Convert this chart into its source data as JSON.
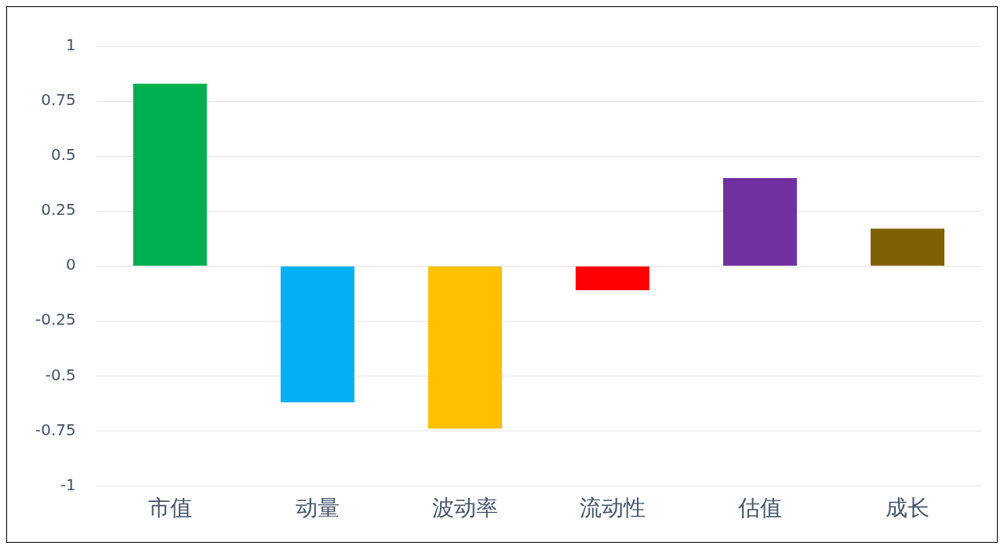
{
  "chart_data": {
    "type": "bar",
    "categories": [
      "市值",
      "动量",
      "波动率",
      "流动性",
      "估值",
      "成长"
    ],
    "values": [
      0.83,
      -0.62,
      -0.74,
      -0.11,
      0.4,
      0.17
    ],
    "colors": [
      "#00b050",
      "#00b0f0",
      "#ffc000",
      "#ff0000",
      "#7030a0",
      "#7f6000"
    ],
    "ylim": [
      -1,
      1
    ],
    "yticks": [
      -1,
      -0.75,
      -0.5,
      -0.25,
      0,
      0.25,
      0.5,
      0.75,
      1
    ],
    "grid": "y",
    "legend": false
  }
}
